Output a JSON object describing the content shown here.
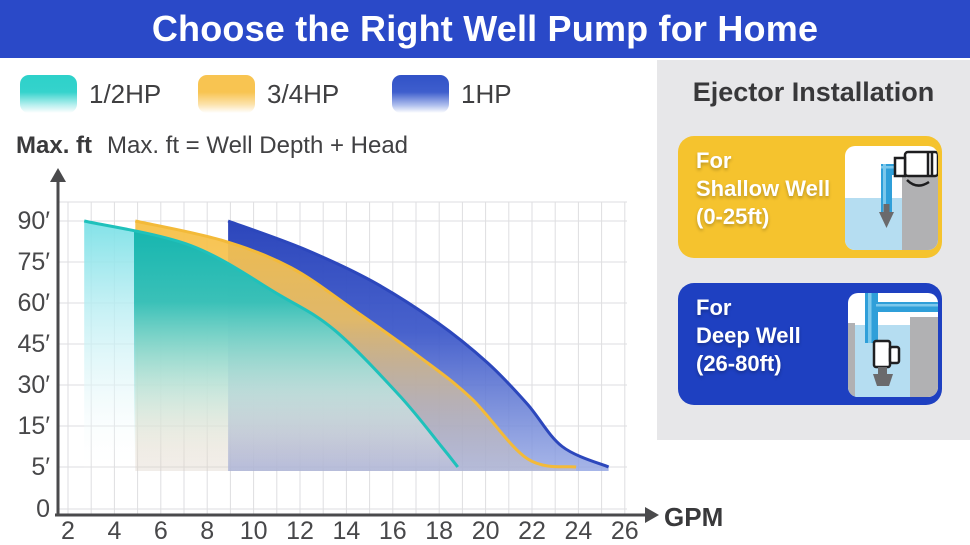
{
  "header": {
    "title": "Choose the Right Well Pump for Home"
  },
  "legend": {
    "items": [
      {
        "label": "1/2HP",
        "color": "#2dd1ca"
      },
      {
        "label": "3/4HP",
        "color": "#f8c451"
      },
      {
        "label": "1HP",
        "color": "#3152c7"
      }
    ]
  },
  "note": {
    "bold": "Max. ft",
    "formula": "Max. ft = Well Depth + Head"
  },
  "chart_data": {
    "type": "area",
    "title": "Well pump performance curves (Max. ft vs GPM)",
    "xlabel": "GPM",
    "ylabel": "Max. ft",
    "x_ticks": [
      2,
      4,
      6,
      8,
      10,
      12,
      14,
      16,
      18,
      20,
      22,
      24,
      26
    ],
    "y_ticks": [
      {
        "label": "90′",
        "ft": 90
      },
      {
        "label": "75′",
        "ft": 75
      },
      {
        "label": "60′",
        "ft": 60
      },
      {
        "label": "45′",
        "ft": 45
      },
      {
        "label": "30′",
        "ft": 30
      },
      {
        "label": "15′",
        "ft": 15
      },
      {
        "label": "5′",
        "ft": 5
      },
      {
        "label": "0",
        "ft": 0
      }
    ],
    "xlim": [
      0,
      27
    ],
    "ylim": [
      0,
      100
    ],
    "grid": true,
    "legend_position": "top-left",
    "series": [
      {
        "name": "1/2HP",
        "color": "#1fc1bb",
        "points": [
          [
            2.7,
            90
          ],
          [
            7.3,
            81
          ],
          [
            11.1,
            63
          ],
          [
            13.5,
            50
          ],
          [
            16.3,
            26
          ],
          [
            18.1,
            10
          ],
          [
            18.8,
            5
          ]
        ]
      },
      {
        "name": "3/4HP",
        "color": "#f3ba39",
        "points": [
          [
            4.9,
            90
          ],
          [
            8.6,
            83
          ],
          [
            11.6,
            73
          ],
          [
            14.4,
            57
          ],
          [
            17.2,
            40
          ],
          [
            19.4,
            25
          ],
          [
            21.8,
            7
          ],
          [
            23.9,
            5
          ]
        ]
      },
      {
        "name": "1HP",
        "color": "#2c47bc",
        "points": [
          [
            8.9,
            90
          ],
          [
            12.1,
            80
          ],
          [
            15.1,
            68
          ],
          [
            17.9,
            53
          ],
          [
            20.1,
            38
          ],
          [
            21.8,
            23
          ],
          [
            23.3,
            10
          ],
          [
            25.3,
            5
          ]
        ]
      }
    ]
  },
  "sidebar": {
    "heading": "Ejector Installation",
    "cards": [
      {
        "line1": "For",
        "line2": "Shallow Well",
        "line3": "(0-25ft)",
        "color": "#f5c32e"
      },
      {
        "line1": "For",
        "line2": "Deep Well",
        "line3": "(26-80ft)",
        "color": "#1e40c1"
      }
    ]
  },
  "colors": {
    "header_bg": "#2a49c8",
    "panel_bg": "#e7e7e9",
    "axis": "#4a4a4c",
    "grid": "#dedee0",
    "text": "#3a3a3c",
    "water": "#b5ddf1",
    "pipe": "#2f9fd9",
    "ground": "#b1b1b3"
  }
}
